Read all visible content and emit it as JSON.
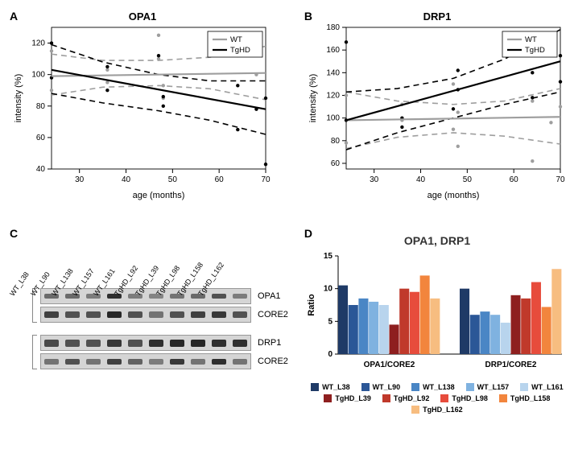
{
  "panel_labels": {
    "A": "A",
    "B": "B",
    "C": "C",
    "D": "D"
  },
  "colors": {
    "wt": "#9e9e9e",
    "tghd": "#000000",
    "tick": "#000000"
  },
  "charts": {
    "opa1": {
      "title": "OPA1",
      "xlabel": "age (months)",
      "ylabel": "intensity (%)",
      "xlim": [
        24,
        70
      ],
      "xticks": [
        30,
        40,
        50,
        60,
        70
      ],
      "ylim": [
        40,
        130
      ],
      "yticks": [
        40,
        60,
        80,
        100,
        120
      ],
      "legend": [
        "WT",
        "TgHD"
      ],
      "series": {
        "wt_line": {
          "y0": 99,
          "y1": 101,
          "color": "#9e9e9e"
        },
        "tghd_line": {
          "y0": 103,
          "y1": 78,
          "color": "#000000"
        },
        "wt_ci_up": {
          "pts": [
            [
              24,
              113
            ],
            [
              35,
              109
            ],
            [
              47,
              109
            ],
            [
              58,
              111
            ],
            [
              70,
              118
            ]
          ],
          "color": "#9e9e9e"
        },
        "wt_ci_lo": {
          "pts": [
            [
              24,
              87
            ],
            [
              35,
              92
            ],
            [
              47,
              93
            ],
            [
              58,
              91
            ],
            [
              70,
              84
            ]
          ],
          "color": "#9e9e9e"
        },
        "tghd_ci_up": {
          "pts": [
            [
              24,
              119
            ],
            [
              35,
              108
            ],
            [
              47,
              100
            ],
            [
              58,
              96
            ],
            [
              70,
              96
            ]
          ],
          "color": "#000000"
        },
        "tghd_ci_lo": {
          "pts": [
            [
              24,
              88
            ],
            [
              35,
              82
            ],
            [
              47,
              77
            ],
            [
              58,
              71
            ],
            [
              70,
              62
            ]
          ],
          "color": "#000000"
        }
      },
      "points": {
        "wt": [
          [
            24,
            115
          ],
          [
            24,
            90
          ],
          [
            36,
            103
          ],
          [
            36,
            95
          ],
          [
            47,
            110
          ],
          [
            47,
            125
          ],
          [
            48,
            93
          ],
          [
            48,
            85
          ],
          [
            64,
            120
          ],
          [
            64,
            112
          ],
          [
            68,
            100
          ],
          [
            70,
            85
          ]
        ],
        "tghd": [
          [
            24,
            120
          ],
          [
            24,
            98
          ],
          [
            36,
            90
          ],
          [
            36,
            105
          ],
          [
            47,
            112
          ],
          [
            48,
            86
          ],
          [
            48,
            80
          ],
          [
            64,
            93
          ],
          [
            64,
            65
          ],
          [
            68,
            78
          ],
          [
            70,
            85
          ],
          [
            70,
            43
          ]
        ]
      }
    },
    "drp1": {
      "title": "DRP1",
      "xlabel": "age (months)",
      "ylabel": "intensity (%)",
      "xlim": [
        24,
        70
      ],
      "xticks": [
        30,
        40,
        50,
        60,
        70
      ],
      "ylim": [
        55,
        180
      ],
      "yticks": [
        60,
        80,
        100,
        120,
        140,
        160,
        180
      ],
      "legend": [
        "WT",
        "TgHD"
      ],
      "series": {
        "wt_line": {
          "y0": 98,
          "y1": 101,
          "color": "#9e9e9e"
        },
        "tghd_line": {
          "y0": 98,
          "y1": 150,
          "color": "#000000"
        },
        "wt_ci_up": {
          "pts": [
            [
              24,
              123
            ],
            [
              35,
              115
            ],
            [
              47,
              112
            ],
            [
              58,
              115
            ],
            [
              70,
              126
            ]
          ],
          "color": "#9e9e9e"
        },
        "wt_ci_lo": {
          "pts": [
            [
              24,
              73
            ],
            [
              35,
              83
            ],
            [
              47,
              87
            ],
            [
              58,
              84
            ],
            [
              70,
              77
            ]
          ],
          "color": "#9e9e9e"
        },
        "tghd_ci_up": {
          "pts": [
            [
              24,
              123
            ],
            [
              35,
              126
            ],
            [
              47,
              135
            ],
            [
              58,
              152
            ],
            [
              70,
              178
            ]
          ],
          "color": "#000000"
        },
        "tghd_ci_lo": {
          "pts": [
            [
              24,
              72
            ],
            [
              35,
              87
            ],
            [
              47,
              100
            ],
            [
              58,
              112
            ],
            [
              70,
              123
            ]
          ],
          "color": "#000000"
        }
      },
      "points": {
        "wt": [
          [
            24,
            120
          ],
          [
            24,
            78
          ],
          [
            36,
            98
          ],
          [
            36,
            112
          ],
          [
            47,
            90
          ],
          [
            47,
            130
          ],
          [
            48,
            75
          ],
          [
            48,
            105
          ],
          [
            64,
            115
          ],
          [
            64,
            62
          ],
          [
            68,
            96
          ],
          [
            70,
            110
          ]
        ],
        "tghd": [
          [
            24,
            98
          ],
          [
            24,
            167
          ],
          [
            36,
            100
          ],
          [
            36,
            92
          ],
          [
            47,
            108
          ],
          [
            48,
            125
          ],
          [
            48,
            142
          ],
          [
            64,
            118
          ],
          [
            64,
            140
          ],
          [
            68,
            160
          ],
          [
            70,
            155
          ],
          [
            70,
            132
          ]
        ]
      }
    }
  },
  "blot": {
    "samples": [
      "WT_L38",
      "WT_L90",
      "WT_L138",
      "WT_L157",
      "WT_L161",
      "TgHD_L92",
      "TgHD_L39",
      "TgHD_L98",
      "TgHD_L158",
      "TgHD_L162"
    ],
    "groups": [
      {
        "rows": [
          {
            "label": "OPA1",
            "intens": [
              0.55,
              0.55,
              0.45,
              0.9,
              0.45,
              0.4,
              0.5,
              0.55,
              0.7,
              0.45
            ],
            "h": 6
          },
          {
            "label": "CORE2",
            "intens": [
              0.8,
              0.7,
              0.7,
              0.95,
              0.7,
              0.5,
              0.7,
              0.8,
              0.85,
              0.7
            ],
            "h": 8
          }
        ]
      },
      {
        "rows": [
          {
            "label": "DRP1",
            "intens": [
              0.75,
              0.7,
              0.7,
              0.85,
              0.7,
              0.9,
              0.95,
              0.95,
              0.9,
              0.9
            ],
            "h": 9
          },
          {
            "label": "CORE2",
            "intens": [
              0.5,
              0.7,
              0.5,
              0.8,
              0.6,
              0.45,
              0.85,
              0.5,
              0.9,
              0.5
            ],
            "h": 7
          }
        ]
      }
    ]
  },
  "bar": {
    "title": "OPA1, DRP1",
    "ylabel": "Ratio",
    "ylim": [
      0,
      15
    ],
    "yticks": [
      0,
      5,
      10,
      15
    ],
    "groups": [
      "OPA1/CORE2",
      "DRP1/CORE2"
    ],
    "samples": [
      {
        "label": "WT_L38",
        "color": "#1f3a66"
      },
      {
        "label": "WT_L90",
        "color": "#2b5797"
      },
      {
        "label": "WT_L138",
        "color": "#4a86c5"
      },
      {
        "label": "WT_L157",
        "color": "#7fb2e0"
      },
      {
        "label": "WT_L161",
        "color": "#b8d4ed"
      },
      {
        "label": "TgHD_L39",
        "color": "#8e1f1f"
      },
      {
        "label": "TgHD_L92",
        "color": "#c0392b"
      },
      {
        "label": "TgHD_L98",
        "color": "#e74c3c"
      },
      {
        "label": "TgHD_L158",
        "color": "#f2853d"
      },
      {
        "label": "TgHD_L162",
        "color": "#f7bd80"
      }
    ],
    "values": {
      "OPA1/CORE2": [
        10.5,
        7.5,
        8.5,
        8,
        7.5,
        4.5,
        10,
        9.5,
        12,
        8.5
      ],
      "DRP1/CORE2": [
        10,
        6,
        6.5,
        6,
        4.8,
        9,
        8.5,
        11,
        7.2,
        13
      ]
    }
  }
}
